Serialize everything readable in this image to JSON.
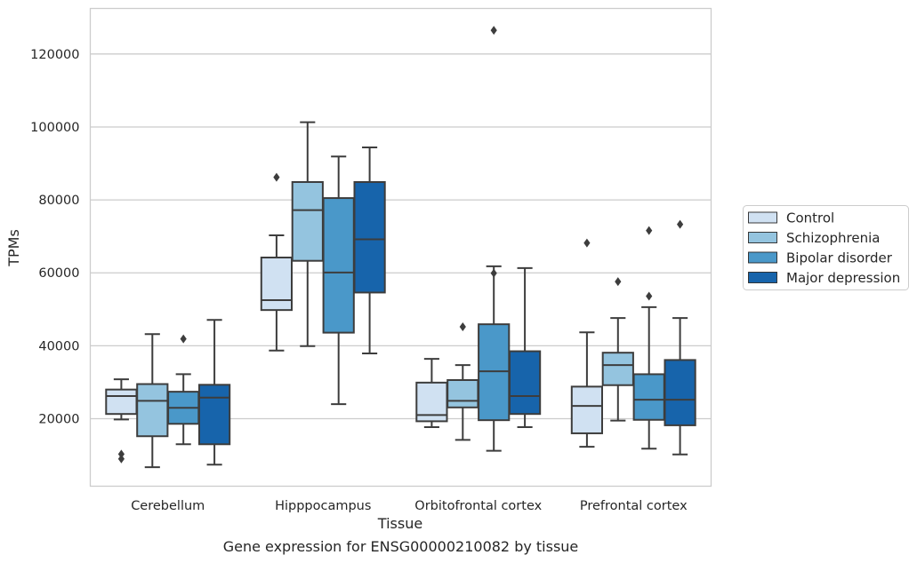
{
  "caption": "Gene expression for ENSG00000210082 by tissue",
  "chart_data": {
    "type": "box",
    "xlabel": "Tissue",
    "ylabel": "TPMs",
    "ylim": [
      1500,
      132500
    ],
    "y_ticks": [
      20000,
      40000,
      60000,
      80000,
      100000,
      120000
    ],
    "y_tick_labels": [
      "20000",
      "40000",
      "60000",
      "80000",
      "100000",
      "120000"
    ],
    "grid": true,
    "legend_position": "right",
    "categories": [
      "Cerebellum",
      "Hipppocampus",
      "Orbitofrontal cortex",
      "Prefrontal cortex"
    ],
    "series": [
      {
        "name": "Control",
        "color": "#d0e1f2",
        "boxes": [
          {
            "whislo": 19800,
            "q1": 21300,
            "med": 26200,
            "q3": 28000,
            "whishi": 30800,
            "fliers": [
              9000,
              10300
            ]
          },
          {
            "whislo": 38700,
            "q1": 49800,
            "med": 52500,
            "q3": 64200,
            "whishi": 70300,
            "fliers": [
              86200
            ]
          },
          {
            "whislo": 17700,
            "q1": 19300,
            "med": 21000,
            "q3": 29900,
            "whishi": 36400,
            "fliers": []
          },
          {
            "whislo": 12300,
            "q1": 16000,
            "med": 23500,
            "q3": 28800,
            "whishi": 43700,
            "fliers": [
              68200
            ]
          }
        ]
      },
      {
        "name": "Schizophrenia",
        "color": "#94c4df",
        "boxes": [
          {
            "whislo": 6700,
            "q1": 15200,
            "med": 24900,
            "q3": 29500,
            "whishi": 43200,
            "fliers": []
          },
          {
            "whislo": 39900,
            "q1": 63300,
            "med": 77200,
            "q3": 84900,
            "whishi": 101300,
            "fliers": []
          },
          {
            "whislo": 14200,
            "q1": 23100,
            "med": 24900,
            "q3": 30600,
            "whishi": 34700,
            "fliers": [
              45200
            ]
          },
          {
            "whislo": 19500,
            "q1": 29200,
            "med": 34700,
            "q3": 38100,
            "whishi": 47600,
            "fliers": [
              57600
            ]
          }
        ]
      },
      {
        "name": "Bipolar disorder",
        "color": "#4a98c9",
        "boxes": [
          {
            "whislo": 13000,
            "q1": 18600,
            "med": 23000,
            "q3": 27400,
            "whishi": 32200,
            "fliers": [
              41900
            ]
          },
          {
            "whislo": 24000,
            "q1": 43600,
            "med": 60100,
            "q3": 80500,
            "whishi": 91900,
            "fliers": []
          },
          {
            "whislo": 11200,
            "q1": 19600,
            "med": 33000,
            "q3": 45900,
            "whishi": 61800,
            "fliers": [
              59900,
              126500
            ]
          },
          {
            "whislo": 11800,
            "q1": 19700,
            "med": 25200,
            "q3": 32200,
            "whishi": 50600,
            "fliers": [
              53600,
              71600
            ]
          }
        ]
      },
      {
        "name": "Major depression",
        "color": "#1764ab",
        "boxes": [
          {
            "whislo": 7400,
            "q1": 13000,
            "med": 25800,
            "q3": 29300,
            "whishi": 47100,
            "fliers": []
          },
          {
            "whislo": 37900,
            "q1": 54600,
            "med": 69200,
            "q3": 84900,
            "whishi": 94400,
            "fliers": []
          },
          {
            "whislo": 17700,
            "q1": 21300,
            "med": 26200,
            "q3": 38500,
            "whishi": 61300,
            "fliers": []
          },
          {
            "whislo": 10200,
            "q1": 18200,
            "med": 25200,
            "q3": 36100,
            "whishi": 47600,
            "fliers": [
              73300
            ]
          }
        ]
      }
    ]
  }
}
